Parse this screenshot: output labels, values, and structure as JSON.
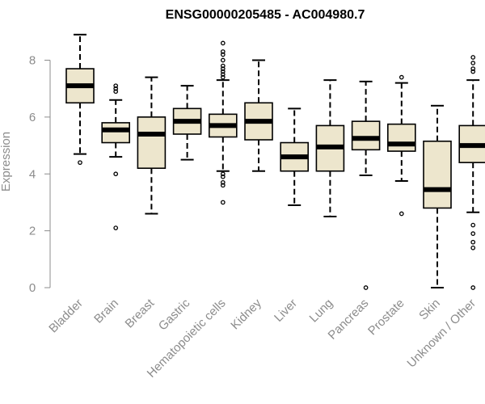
{
  "chart_data": {
    "type": "box",
    "title": "ENSG00000205485 - AC004980.7",
    "xlabel": "",
    "ylabel": "Expression",
    "ylim": [
      0,
      9
    ],
    "yticks": [
      0,
      2,
      4,
      6,
      8
    ],
    "grid": false,
    "box_fill": "#ede6cd",
    "median_color": "#000000",
    "axis_color": "#8c8c8c",
    "categories": [
      "Bladder",
      "Brain",
      "Breast",
      "Gastric",
      "Hematopoietic cells",
      "Kidney",
      "Liver",
      "Lung",
      "Pancreas",
      "Prostate",
      "Skin",
      "Unknown / Other"
    ],
    "series": [
      {
        "name": "Bladder",
        "whisker_low": 4.7,
        "q1": 6.5,
        "median": 7.1,
        "q3": 7.7,
        "whisker_high": 8.9,
        "outliers": [
          4.4
        ]
      },
      {
        "name": "Brain",
        "whisker_low": 4.6,
        "q1": 5.1,
        "median": 5.55,
        "q3": 5.8,
        "whisker_high": 6.6,
        "outliers": [
          7.0,
          7.1,
          6.9,
          4.0,
          2.1
        ]
      },
      {
        "name": "Breast",
        "whisker_low": 2.6,
        "q1": 4.2,
        "median": 5.4,
        "q3": 6.0,
        "whisker_high": 7.4,
        "outliers": []
      },
      {
        "name": "Gastric",
        "whisker_low": 4.5,
        "q1": 5.4,
        "median": 5.85,
        "q3": 6.3,
        "whisker_high": 7.1,
        "outliers": []
      },
      {
        "name": "Hematopoietic cells",
        "whisker_low": 4.1,
        "q1": 5.3,
        "median": 5.7,
        "q3": 6.1,
        "whisker_high": 7.3,
        "outliers": [
          8.6,
          8.3,
          8.2,
          8.0,
          7.8,
          7.7,
          7.6,
          7.5,
          7.4,
          4.0,
          3.9,
          3.7,
          3.6,
          3.0
        ]
      },
      {
        "name": "Kidney",
        "whisker_low": 4.1,
        "q1": 5.2,
        "median": 5.85,
        "q3": 6.5,
        "whisker_high": 8.0,
        "outliers": []
      },
      {
        "name": "Liver",
        "whisker_low": 2.9,
        "q1": 4.1,
        "median": 4.6,
        "q3": 5.1,
        "whisker_high": 6.3,
        "outliers": []
      },
      {
        "name": "Lung",
        "whisker_low": 2.5,
        "q1": 4.1,
        "median": 4.95,
        "q3": 5.7,
        "whisker_high": 7.3,
        "outliers": []
      },
      {
        "name": "Pancreas",
        "whisker_low": 3.95,
        "q1": 4.85,
        "median": 5.25,
        "q3": 5.85,
        "whisker_high": 7.25,
        "outliers": [
          0.0
        ]
      },
      {
        "name": "Prostate",
        "whisker_low": 3.75,
        "q1": 4.8,
        "median": 5.05,
        "q3": 5.75,
        "whisker_high": 7.2,
        "outliers": [
          7.4,
          2.6
        ]
      },
      {
        "name": "Skin",
        "whisker_low": 0.0,
        "q1": 2.8,
        "median": 3.45,
        "q3": 5.15,
        "whisker_high": 6.4,
        "outliers": []
      },
      {
        "name": "Unknown / Other",
        "whisker_low": 2.65,
        "q1": 4.4,
        "median": 5.0,
        "q3": 5.7,
        "whisker_high": 7.3,
        "outliers": [
          8.1,
          7.9,
          7.7,
          7.6,
          2.2,
          1.9,
          1.6,
          1.4,
          0.0
        ]
      }
    ]
  }
}
